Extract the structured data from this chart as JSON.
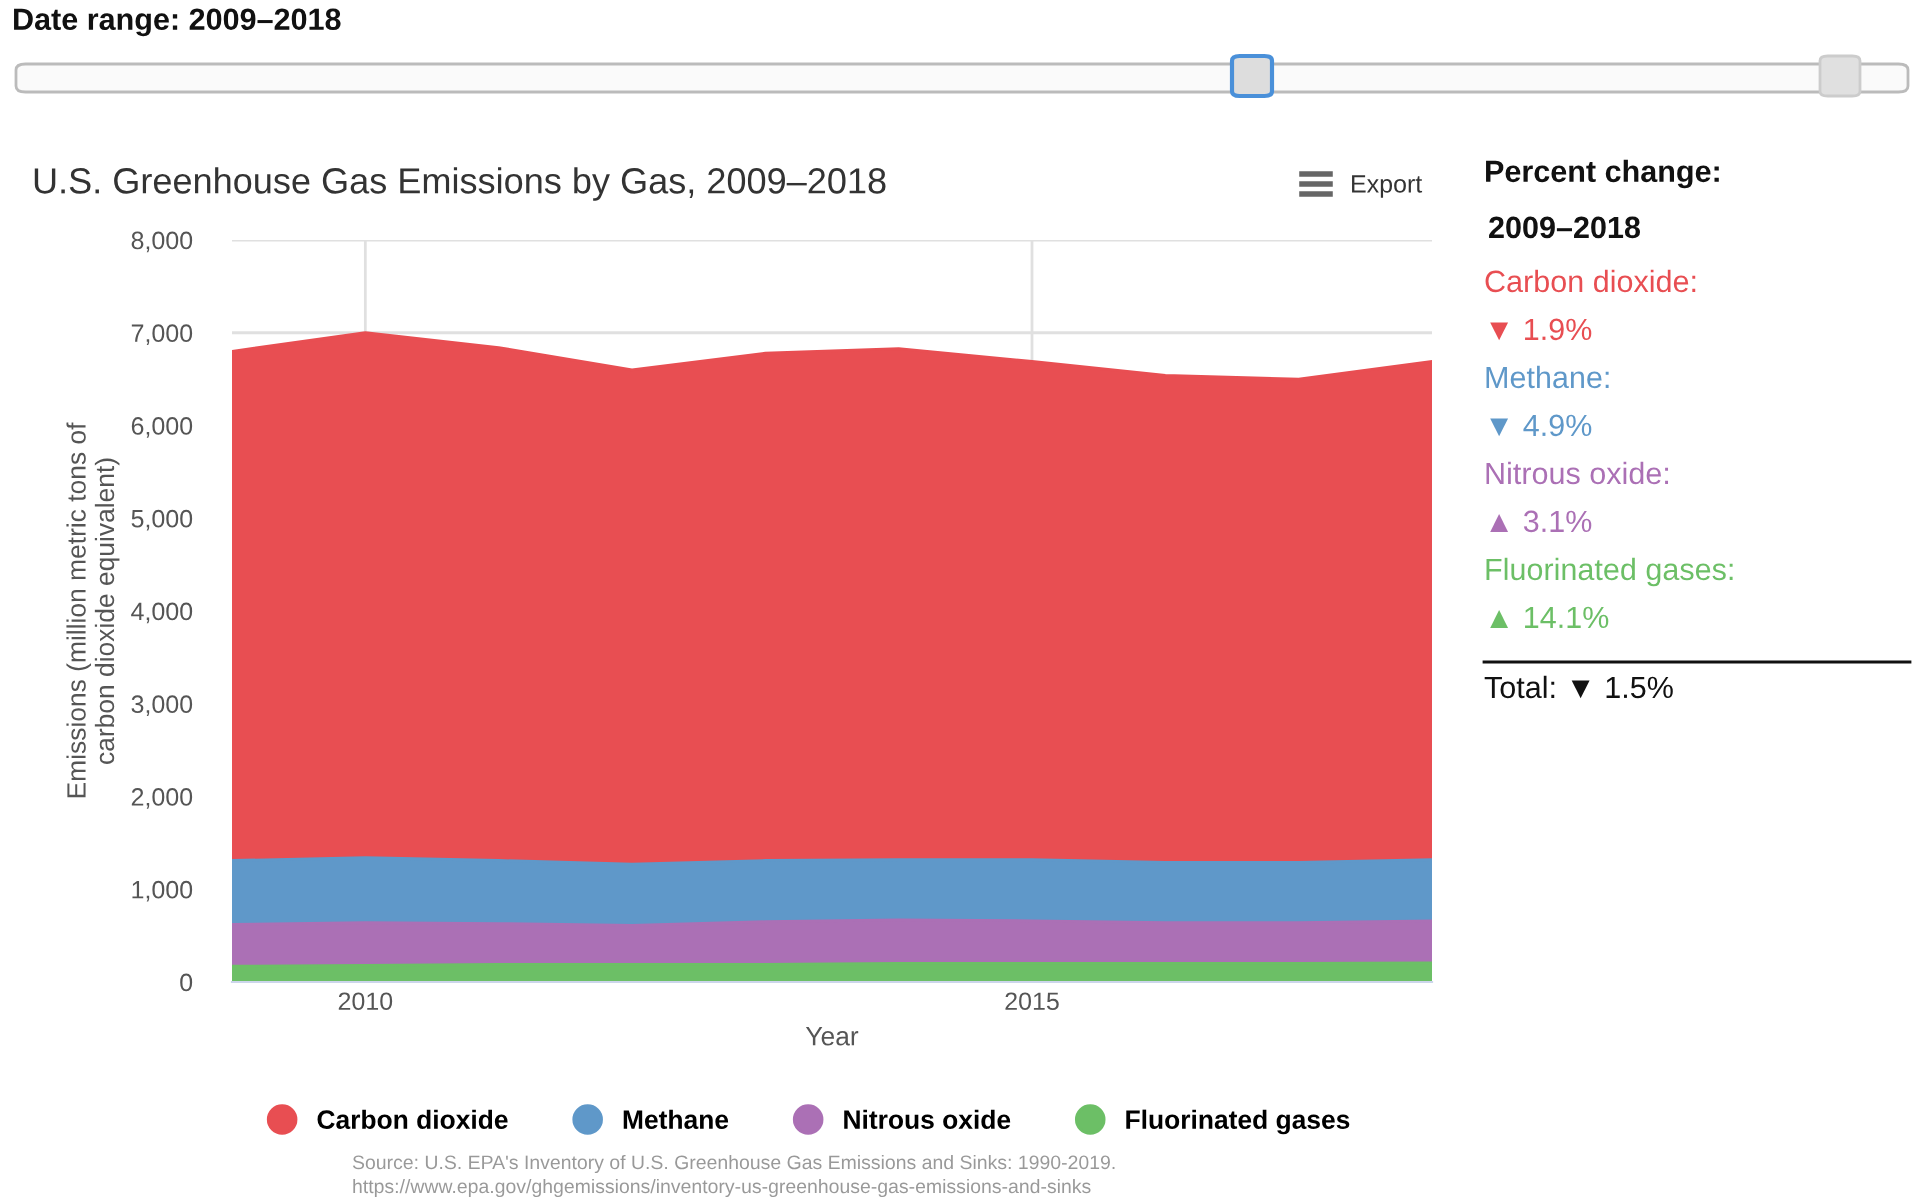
{
  "chart_data": {
    "type": "area",
    "stacked": true,
    "title": "U.S. Greenhouse Gas Emissions by Gas, 2009–2018",
    "xlabel": "Year",
    "ylabel": "Emissions (million metric tons of\ncarbon dioxide equivalent)",
    "x": [
      2009,
      2010,
      2011,
      2012,
      2013,
      2014,
      2015,
      2016,
      2017,
      2018
    ],
    "series": [
      {
        "name": "Fluorinated gases",
        "color": "#6cbf66",
        "values": [
          170,
          180,
          190,
          190,
          190,
          200,
          200,
          200,
          200,
          205
        ]
      },
      {
        "name": "Nitrous oxide",
        "color": "#ab70b5",
        "values": [
          450,
          460,
          440,
          420,
          460,
          470,
          460,
          440,
          440,
          455
        ]
      },
      {
        "name": "Methane",
        "color": "#5f98c9",
        "values": [
          690,
          700,
          680,
          660,
          660,
          650,
          660,
          650,
          650,
          660
        ]
      },
      {
        "name": "Carbon dioxide",
        "color": "#e84e52",
        "values": [
          5490,
          5660,
          5530,
          5330,
          5470,
          5510,
          5370,
          5250,
          5210,
          5370
        ]
      }
    ],
    "xlim": [
      2009,
      2018
    ],
    "xticks": [
      2010,
      2015
    ],
    "ylim": [
      0,
      8000
    ],
    "yticks": [
      0,
      {
        "value": 1000,
        "label": "1,000"
      },
      {
        "value": 2000,
        "label": "2,000"
      },
      {
        "value": 3000,
        "label": "3,000"
      },
      {
        "value": 4000,
        "label": "4,000"
      },
      {
        "value": 5000,
        "label": "5,000"
      },
      {
        "value": 6000,
        "label": "6,000"
      },
      {
        "value": 7000,
        "label": "7,000"
      },
      {
        "value": 8000,
        "label": "8,000"
      }
    ],
    "grid": true,
    "legend": "bottom",
    "annotations": [
      "Date range: 2009–2018",
      "Export",
      "Percent change:",
      "2009–2018",
      "Carbon dioxide:",
      "▼ 1.9%",
      "Methane:",
      "▼ 4.9%",
      "Nitrous oxide:",
      "▲ 3.1%",
      "Fluorinated gases:",
      "▲ 14.1%",
      "Total: ▼ 1.5%",
      "Source: U.S. EPA's Inventory of U.S. Greenhouse Gas Emissions and Sinks: 1990-2019.",
      "https://www.epa.gov/ghgemissions/inventory-us-greenhouse-gas-emissions-and-sinks"
    ]
  }
}
